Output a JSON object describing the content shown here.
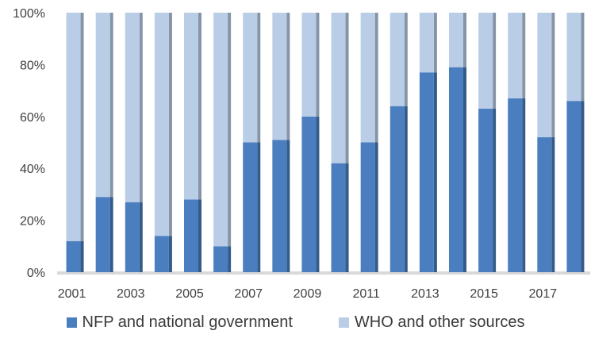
{
  "chart_data": {
    "type": "bar",
    "stacked": true,
    "percent_stacked": true,
    "categories": [
      "2001",
      "2002",
      "2003",
      "2004",
      "2005",
      "2006",
      "2007",
      "2008",
      "2009",
      "2010",
      "2011",
      "2012",
      "2013",
      "2014",
      "2015",
      "2016",
      "2017",
      "2018"
    ],
    "x_tick_labels": [
      "2001",
      "",
      "2003",
      "",
      "2005",
      "",
      "2007",
      "",
      "2009",
      "",
      "2011",
      "",
      "2013",
      "",
      "2015",
      "",
      "2017",
      ""
    ],
    "series": [
      {
        "name": "NFP and national government",
        "color": "#4A7EBF",
        "values": [
          12,
          29,
          27,
          14,
          28,
          10,
          50,
          51,
          60,
          42,
          50,
          64,
          77,
          79,
          63,
          67,
          52,
          66
        ]
      },
      {
        "name": "WHO and other sources",
        "color": "#B9CDE7",
        "values": [
          88,
          71,
          73,
          86,
          72,
          90,
          50,
          49,
          40,
          58,
          50,
          36,
          23,
          21,
          37,
          33,
          48,
          34
        ]
      }
    ],
    "y_ticks": [
      "0%",
      "20%",
      "40%",
      "60%",
      "80%",
      "100%"
    ],
    "ylim": [
      0,
      100
    ],
    "grid": false,
    "legend_position": "bottom",
    "title": "",
    "xlabel": "",
    "ylabel": ""
  }
}
